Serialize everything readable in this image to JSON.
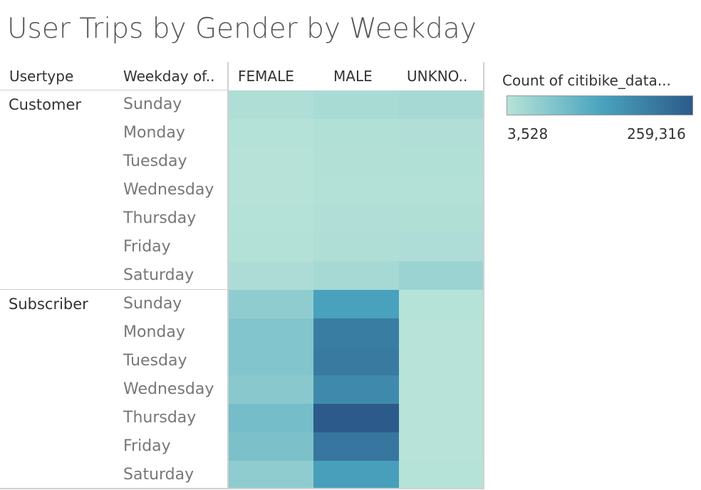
{
  "title": "User Trips by Gender by Weekday",
  "headers": {
    "usertype": "Usertype",
    "weekday": "Weekday of..",
    "columns": [
      "FEMALE",
      "MALE",
      "UNKNO.."
    ]
  },
  "legend": {
    "title": "Count of citibike_data...",
    "min_label": "3,528",
    "max_label": "259,316",
    "colors": [
      "#b7e3d8",
      "#4aa5bf",
      "#2c5a8a"
    ]
  },
  "chart_data": {
    "type": "heatmap",
    "title": "User Trips by Gender by Weekday",
    "columns": [
      "FEMALE",
      "MALE",
      "UNKNO.."
    ],
    "range": [
      3528,
      259316
    ],
    "groups": [
      {
        "name": "Customer",
        "rows": [
          {
            "label": "Sunday",
            "values": [
              14000,
              20000,
              24000
            ]
          },
          {
            "label": "Monday",
            "values": [
              6000,
              10000,
              11000
            ]
          },
          {
            "label": "Tuesday",
            "values": [
              5000,
              9000,
              10000
            ]
          },
          {
            "label": "Wednesday",
            "values": [
              5000,
              8000,
              8500
            ]
          },
          {
            "label": "Thursday",
            "values": [
              6000,
              11000,
              12000
            ]
          },
          {
            "label": "Friday",
            "values": [
              7000,
              14000,
              15000
            ]
          },
          {
            "label": "Saturday",
            "values": [
              17000,
              24000,
              36000
            ]
          }
        ]
      },
      {
        "name": "Subscriber",
        "rows": [
          {
            "label": "Sunday",
            "values": [
              50000,
              137000,
              4500
            ]
          },
          {
            "label": "Monday",
            "values": [
              65000,
              200000,
              4000
            ]
          },
          {
            "label": "Tuesday",
            "values": [
              66000,
              205000,
              3800
            ]
          },
          {
            "label": "Wednesday",
            "values": [
              58000,
              178000,
              3800
            ]
          },
          {
            "label": "Thursday",
            "values": [
              82000,
              259316,
              3528
            ]
          },
          {
            "label": "Friday",
            "values": [
              73000,
              212000,
              3900
            ]
          },
          {
            "label": "Saturday",
            "values": [
              52000,
              142000,
              4500
            ]
          }
        ]
      }
    ]
  }
}
